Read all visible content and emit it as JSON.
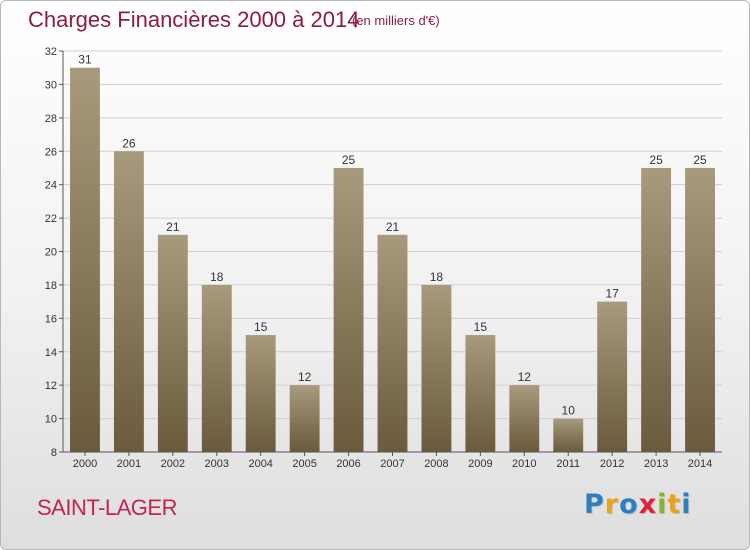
{
  "header": {
    "title": "Charges Financières 2000 à 2014",
    "subtitle": "(en milliers d'€)"
  },
  "footer": {
    "commune": "SAINT-LAGER",
    "logo": [
      "P",
      "r",
      "o",
      "x",
      "i",
      "t",
      "i"
    ],
    "logo_colors": [
      "#2e7fc2",
      "#e8a21b",
      "#2e7fc2",
      "#e0213b",
      "#86b431",
      "#e8a21b",
      "#2e7fc2"
    ]
  },
  "colors": {
    "bar_top": "#a79a7d",
    "bar_bottom": "#6b5a3c",
    "grid": "#d0d0d0",
    "axis": "#555555",
    "text": "#333333"
  },
  "chart_data": {
    "type": "bar",
    "categories": [
      "2000",
      "2001",
      "2002",
      "2003",
      "2004",
      "2005",
      "2006",
      "2007",
      "2008",
      "2009",
      "2010",
      "2011",
      "2012",
      "2013",
      "2014"
    ],
    "values": [
      31,
      26,
      21,
      18,
      15,
      12,
      25,
      21,
      18,
      15,
      12,
      10,
      17,
      25,
      25
    ],
    "ylim": [
      8,
      32
    ],
    "yticks": [
      8,
      10,
      12,
      14,
      16,
      18,
      20,
      22,
      24,
      26,
      28,
      30,
      32
    ],
    "grid": true
  }
}
